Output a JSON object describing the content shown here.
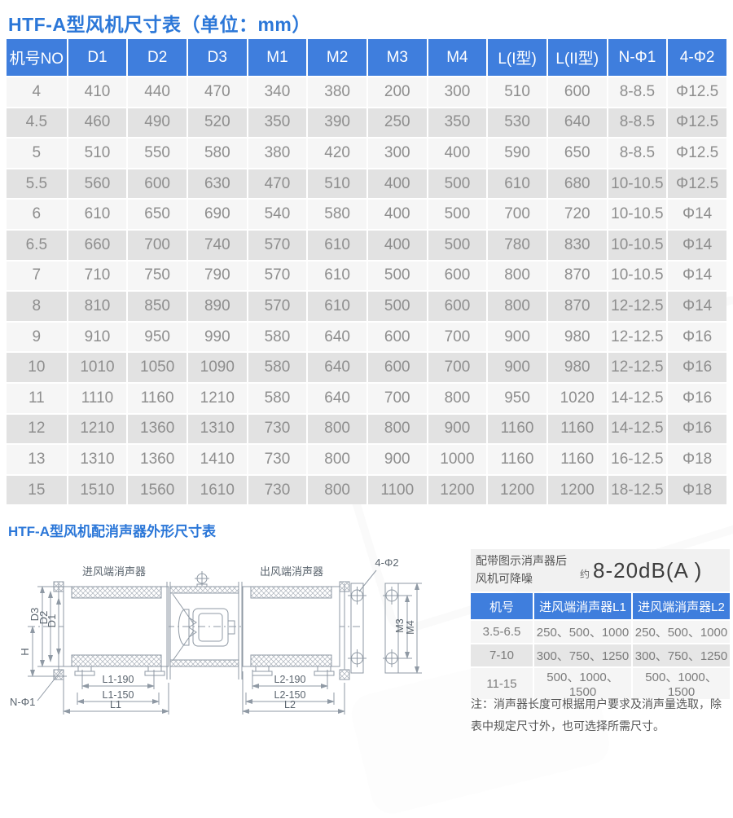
{
  "colors": {
    "accent_blue": "#3f7edd",
    "title_blue": "#2b77d8",
    "row_light": "#f6f6f6",
    "row_dark": "#e2e2e2",
    "cell_text": "#8e8e8e"
  },
  "section1": {
    "title": "HTF-A型风机尺寸表（单位：mm）",
    "dimension_table": {
      "headers": [
        "机号NO",
        "D1",
        "D2",
        "D3",
        "M1",
        "M2",
        "M3",
        "M4",
        "L(I型)",
        "L(II型)",
        "N-Φ1",
        "4-Φ2"
      ],
      "rows": [
        [
          "4",
          "410",
          "440",
          "470",
          "340",
          "380",
          "200",
          "300",
          "510",
          "600",
          "8-8.5",
          "Φ12.5"
        ],
        [
          "4.5",
          "460",
          "490",
          "520",
          "350",
          "390",
          "250",
          "350",
          "530",
          "640",
          "8-8.5",
          "Φ12.5"
        ],
        [
          "5",
          "510",
          "550",
          "580",
          "380",
          "420",
          "300",
          "400",
          "590",
          "650",
          "8-8.5",
          "Φ12.5"
        ],
        [
          "5.5",
          "560",
          "600",
          "630",
          "470",
          "510",
          "400",
          "500",
          "610",
          "680",
          "10-10.5",
          "Φ12.5"
        ],
        [
          "6",
          "610",
          "650",
          "690",
          "540",
          "580",
          "400",
          "500",
          "700",
          "720",
          "10-10.5",
          "Φ14"
        ],
        [
          "6.5",
          "660",
          "700",
          "740",
          "570",
          "610",
          "400",
          "500",
          "780",
          "830",
          "10-10.5",
          "Φ14"
        ],
        [
          "7",
          "710",
          "750",
          "790",
          "570",
          "610",
          "500",
          "600",
          "800",
          "870",
          "10-10.5",
          "Φ14"
        ],
        [
          "8",
          "810",
          "850",
          "890",
          "570",
          "610",
          "500",
          "600",
          "800",
          "870",
          "12-12.5",
          "Φ14"
        ],
        [
          "9",
          "910",
          "950",
          "990",
          "580",
          "640",
          "600",
          "700",
          "900",
          "980",
          "12-12.5",
          "Φ16"
        ],
        [
          "10",
          "1010",
          "1050",
          "1090",
          "580",
          "640",
          "600",
          "700",
          "900",
          "980",
          "12-12.5",
          "Φ16"
        ],
        [
          "11",
          "1110",
          "1160",
          "1210",
          "580",
          "640",
          "700",
          "800",
          "950",
          "1020",
          "14-12.5",
          "Φ16"
        ],
        [
          "12",
          "1210",
          "1360",
          "1310",
          "730",
          "800",
          "800",
          "900",
          "1160",
          "1160",
          "14-12.5",
          "Φ16"
        ],
        [
          "13",
          "1310",
          "1360",
          "1410",
          "730",
          "800",
          "900",
          "1000",
          "1160",
          "1160",
          "16-12.5",
          "Φ18"
        ],
        [
          "15",
          "1510",
          "1560",
          "1610",
          "730",
          "800",
          "1100",
          "1200",
          "1200",
          "1200",
          "18-12.5",
          "Φ18"
        ]
      ]
    }
  },
  "section2": {
    "title": "HTF-A型风机配消声器外形尺寸表",
    "diagram": {
      "labels": {
        "inlet_title": "进风端消声器",
        "outlet_title": "出风端消声器",
        "bolt_callout": "4-Φ2",
        "d3": "D3",
        "d2": "D2",
        "d1": "D1",
        "h": "H",
        "n_phi1": "N-Φ1",
        "l1_190": "L1-190",
        "l1_150": "L1-150",
        "l1": "L1",
        "l2_190": "L2-190",
        "l2_150": "L2-150",
        "l2": "L2",
        "m3": "M3",
        "m4": "M4"
      }
    },
    "noise": {
      "line1": "配带图示消声器后",
      "line2": "风机可降噪",
      "approx": "约",
      "value": "8-20dB(A )"
    },
    "silencer_table": {
      "headers": [
        "机号",
        "进风端消声器L1",
        "进风端消声器L2"
      ],
      "rows": [
        [
          "3.5-6.5",
          "250、500、1000",
          "250、500、1000"
        ],
        [
          "7-10",
          "300、750、1250",
          "300、750、1250"
        ],
        [
          "11-15",
          "500、1000、1500",
          "500、1000、1500"
        ]
      ]
    },
    "note": {
      "line1": "注：消声器长度可根据用户要求及消声量选取，除",
      "line2": "表中规定尺寸外，也可选择所需尺寸。"
    }
  }
}
